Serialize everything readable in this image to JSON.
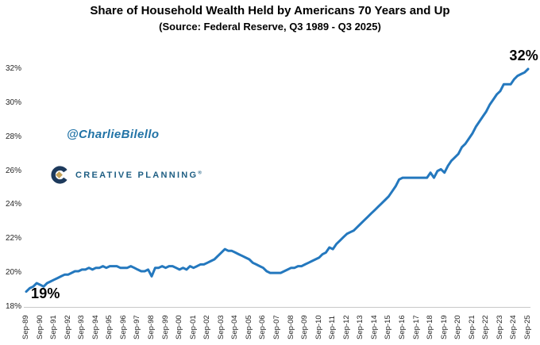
{
  "header": {
    "title": "Share of Household Wealth Held by Americans 70 Years and Up",
    "subtitle": "(Source: Federal Reserve, Q3 1989 - Q3 2025)"
  },
  "watermark": {
    "handle": "@CharlieBilello"
  },
  "brand": {
    "name": "CREATIVE PLANNING",
    "registered": "®"
  },
  "annotations": {
    "start_label": "19%",
    "end_label": "32%"
  },
  "colors": {
    "line": "#2478BE",
    "watermark_blue": "#2173a6",
    "brand_navy": "#1d3a5c",
    "brand_gold": "#c5a259",
    "brand_text": "#1e5e83",
    "axis_line": "#c8c8c8",
    "tick_text": "#262626"
  },
  "chart_data": {
    "type": "line",
    "title": "Share of Household Wealth Held by Americans 70 Years and Up",
    "subtitle": "(Source: Federal Reserve, Q3 1989 - Q3 2025)",
    "series_name": "Share of household wealth held by Americans 70 years and up",
    "frequency": "quarterly",
    "x_start": "1989 Q3",
    "x_end": "2025 Q3",
    "ylim": [
      18,
      32
    ],
    "grid": false,
    "legend": "none",
    "y_tick_labels": [
      "18%",
      "20%",
      "22%",
      "24%",
      "26%",
      "28%",
      "30%",
      "32%"
    ],
    "x_tick_labels": [
      "Sep-89",
      "Sep-90",
      "Sep-91",
      "Sep-92",
      "Sep-93",
      "Sep-94",
      "Sep-95",
      "Sep-96",
      "Sep-97",
      "Sep-98",
      "Sep-99",
      "Sep-00",
      "Sep-01",
      "Sep-02",
      "Sep-03",
      "Sep-04",
      "Sep-05",
      "Sep-06",
      "Sep-07",
      "Sep-08",
      "Sep-09",
      "Sep-10",
      "Sep-11",
      "Sep-12",
      "Sep-13",
      "Sep-14",
      "Sep-15",
      "Sep-16",
      "Sep-17",
      "Sep-18",
      "Sep-19",
      "Sep-20",
      "Sep-21",
      "Sep-22",
      "Sep-23",
      "Sep-24",
      "Sep-25"
    ],
    "values": [
      18.9,
      19.1,
      19.2,
      19.4,
      19.3,
      19.2,
      19.4,
      19.5,
      19.6,
      19.7,
      19.8,
      19.9,
      19.9,
      20.0,
      20.1,
      20.1,
      20.2,
      20.2,
      20.3,
      20.2,
      20.3,
      20.3,
      20.4,
      20.3,
      20.4,
      20.4,
      20.4,
      20.3,
      20.3,
      20.3,
      20.4,
      20.3,
      20.2,
      20.1,
      20.1,
      20.2,
      19.8,
      20.3,
      20.3,
      20.4,
      20.3,
      20.4,
      20.4,
      20.3,
      20.2,
      20.3,
      20.2,
      20.4,
      20.3,
      20.4,
      20.5,
      20.5,
      20.6,
      20.7,
      20.8,
      21.0,
      21.2,
      21.4,
      21.3,
      21.3,
      21.2,
      21.1,
      21.0,
      20.9,
      20.8,
      20.6,
      20.5,
      20.4,
      20.3,
      20.1,
      20.0,
      20.0,
      20.0,
      20.0,
      20.1,
      20.2,
      20.3,
      20.3,
      20.4,
      20.4,
      20.5,
      20.6,
      20.7,
      20.8,
      20.9,
      21.1,
      21.2,
      21.5,
      21.4,
      21.7,
      21.9,
      22.1,
      22.3,
      22.4,
      22.5,
      22.7,
      22.9,
      23.1,
      23.3,
      23.5,
      23.7,
      23.9,
      24.1,
      24.3,
      24.5,
      24.8,
      25.1,
      25.5,
      25.6,
      25.6,
      25.6,
      25.6,
      25.6,
      25.6,
      25.6,
      25.6,
      25.9,
      25.6,
      26.0,
      26.1,
      25.9,
      26.3,
      26.6,
      26.8,
      27.0,
      27.4,
      27.6,
      27.9,
      28.2,
      28.6,
      28.9,
      29.2,
      29.5,
      29.9,
      30.2,
      30.5,
      30.7,
      31.1,
      31.1,
      31.1,
      31.4,
      31.6,
      31.7,
      31.8,
      32.0
    ]
  }
}
